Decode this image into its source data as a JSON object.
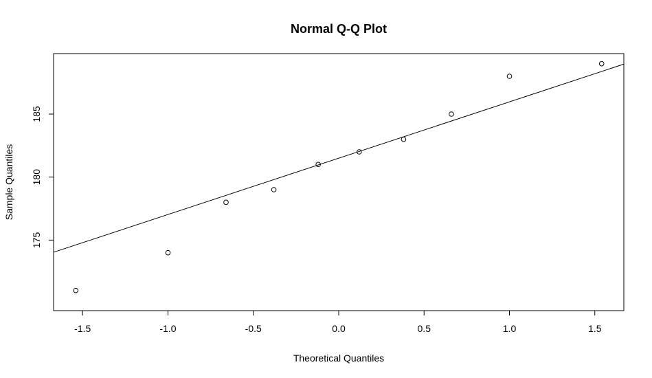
{
  "chart_data": {
    "type": "scatter",
    "title": "Normal Q-Q Plot",
    "xlabel": "Theoretical Quantiles",
    "ylabel": "Sample Quantiles",
    "xlim": [
      -1.67,
      1.67
    ],
    "ylim": [
      169.4,
      189.8
    ],
    "xticks": [
      -1.5,
      -1.0,
      -0.5,
      0.0,
      0.5,
      1.0,
      1.5
    ],
    "xtick_labels": [
      "-1.5",
      "-1.0",
      "-0.5",
      "0.0",
      "0.5",
      "1.0",
      "1.5"
    ],
    "yticks": [
      175,
      180,
      185
    ],
    "ytick_labels": [
      "175",
      "180",
      "185"
    ],
    "grid": false,
    "marker": "open-circle",
    "color": "#000000",
    "points": [
      {
        "x": -1.54,
        "y": 171
      },
      {
        "x": -1.0,
        "y": 174
      },
      {
        "x": -0.66,
        "y": 178
      },
      {
        "x": -0.38,
        "y": 179
      },
      {
        "x": -0.12,
        "y": 181
      },
      {
        "x": 0.12,
        "y": 182
      },
      {
        "x": 0.38,
        "y": 183
      },
      {
        "x": 0.66,
        "y": 185
      },
      {
        "x": 1.0,
        "y": 188
      },
      {
        "x": 1.54,
        "y": 189
      }
    ],
    "reference_line": {
      "intercept": 181.5,
      "slope": 4.47
    }
  }
}
